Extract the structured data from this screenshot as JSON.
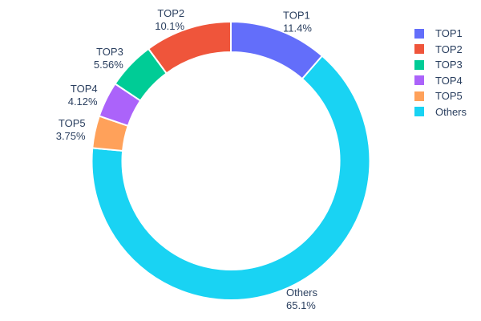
{
  "chart_data": {
    "type": "pie",
    "subtype": "donut",
    "hole": 0.78,
    "direction": "counterclockwise",
    "start_angle_deg": 0,
    "labels": [
      "TOP1",
      "TOP2",
      "TOP3",
      "TOP4",
      "TOP5",
      "Others"
    ],
    "values": [
      11.4,
      10.1,
      5.56,
      4.12,
      3.75,
      65.1
    ],
    "percent_labels": [
      "11.4%",
      "10.1%",
      "5.56%",
      "4.12%",
      "3.75%",
      "65.1%"
    ],
    "colors": [
      "#636EFA",
      "#EF553B",
      "#00CC96",
      "#AB63FA",
      "#FFA15A",
      "#19D3F3"
    ],
    "title": "",
    "label_position": "outside",
    "legend_position": "right"
  },
  "theme": {
    "background": "#FFFFFF",
    "text_color": "#2A3F5F",
    "slice_gap_color": "#FFFFFF"
  }
}
